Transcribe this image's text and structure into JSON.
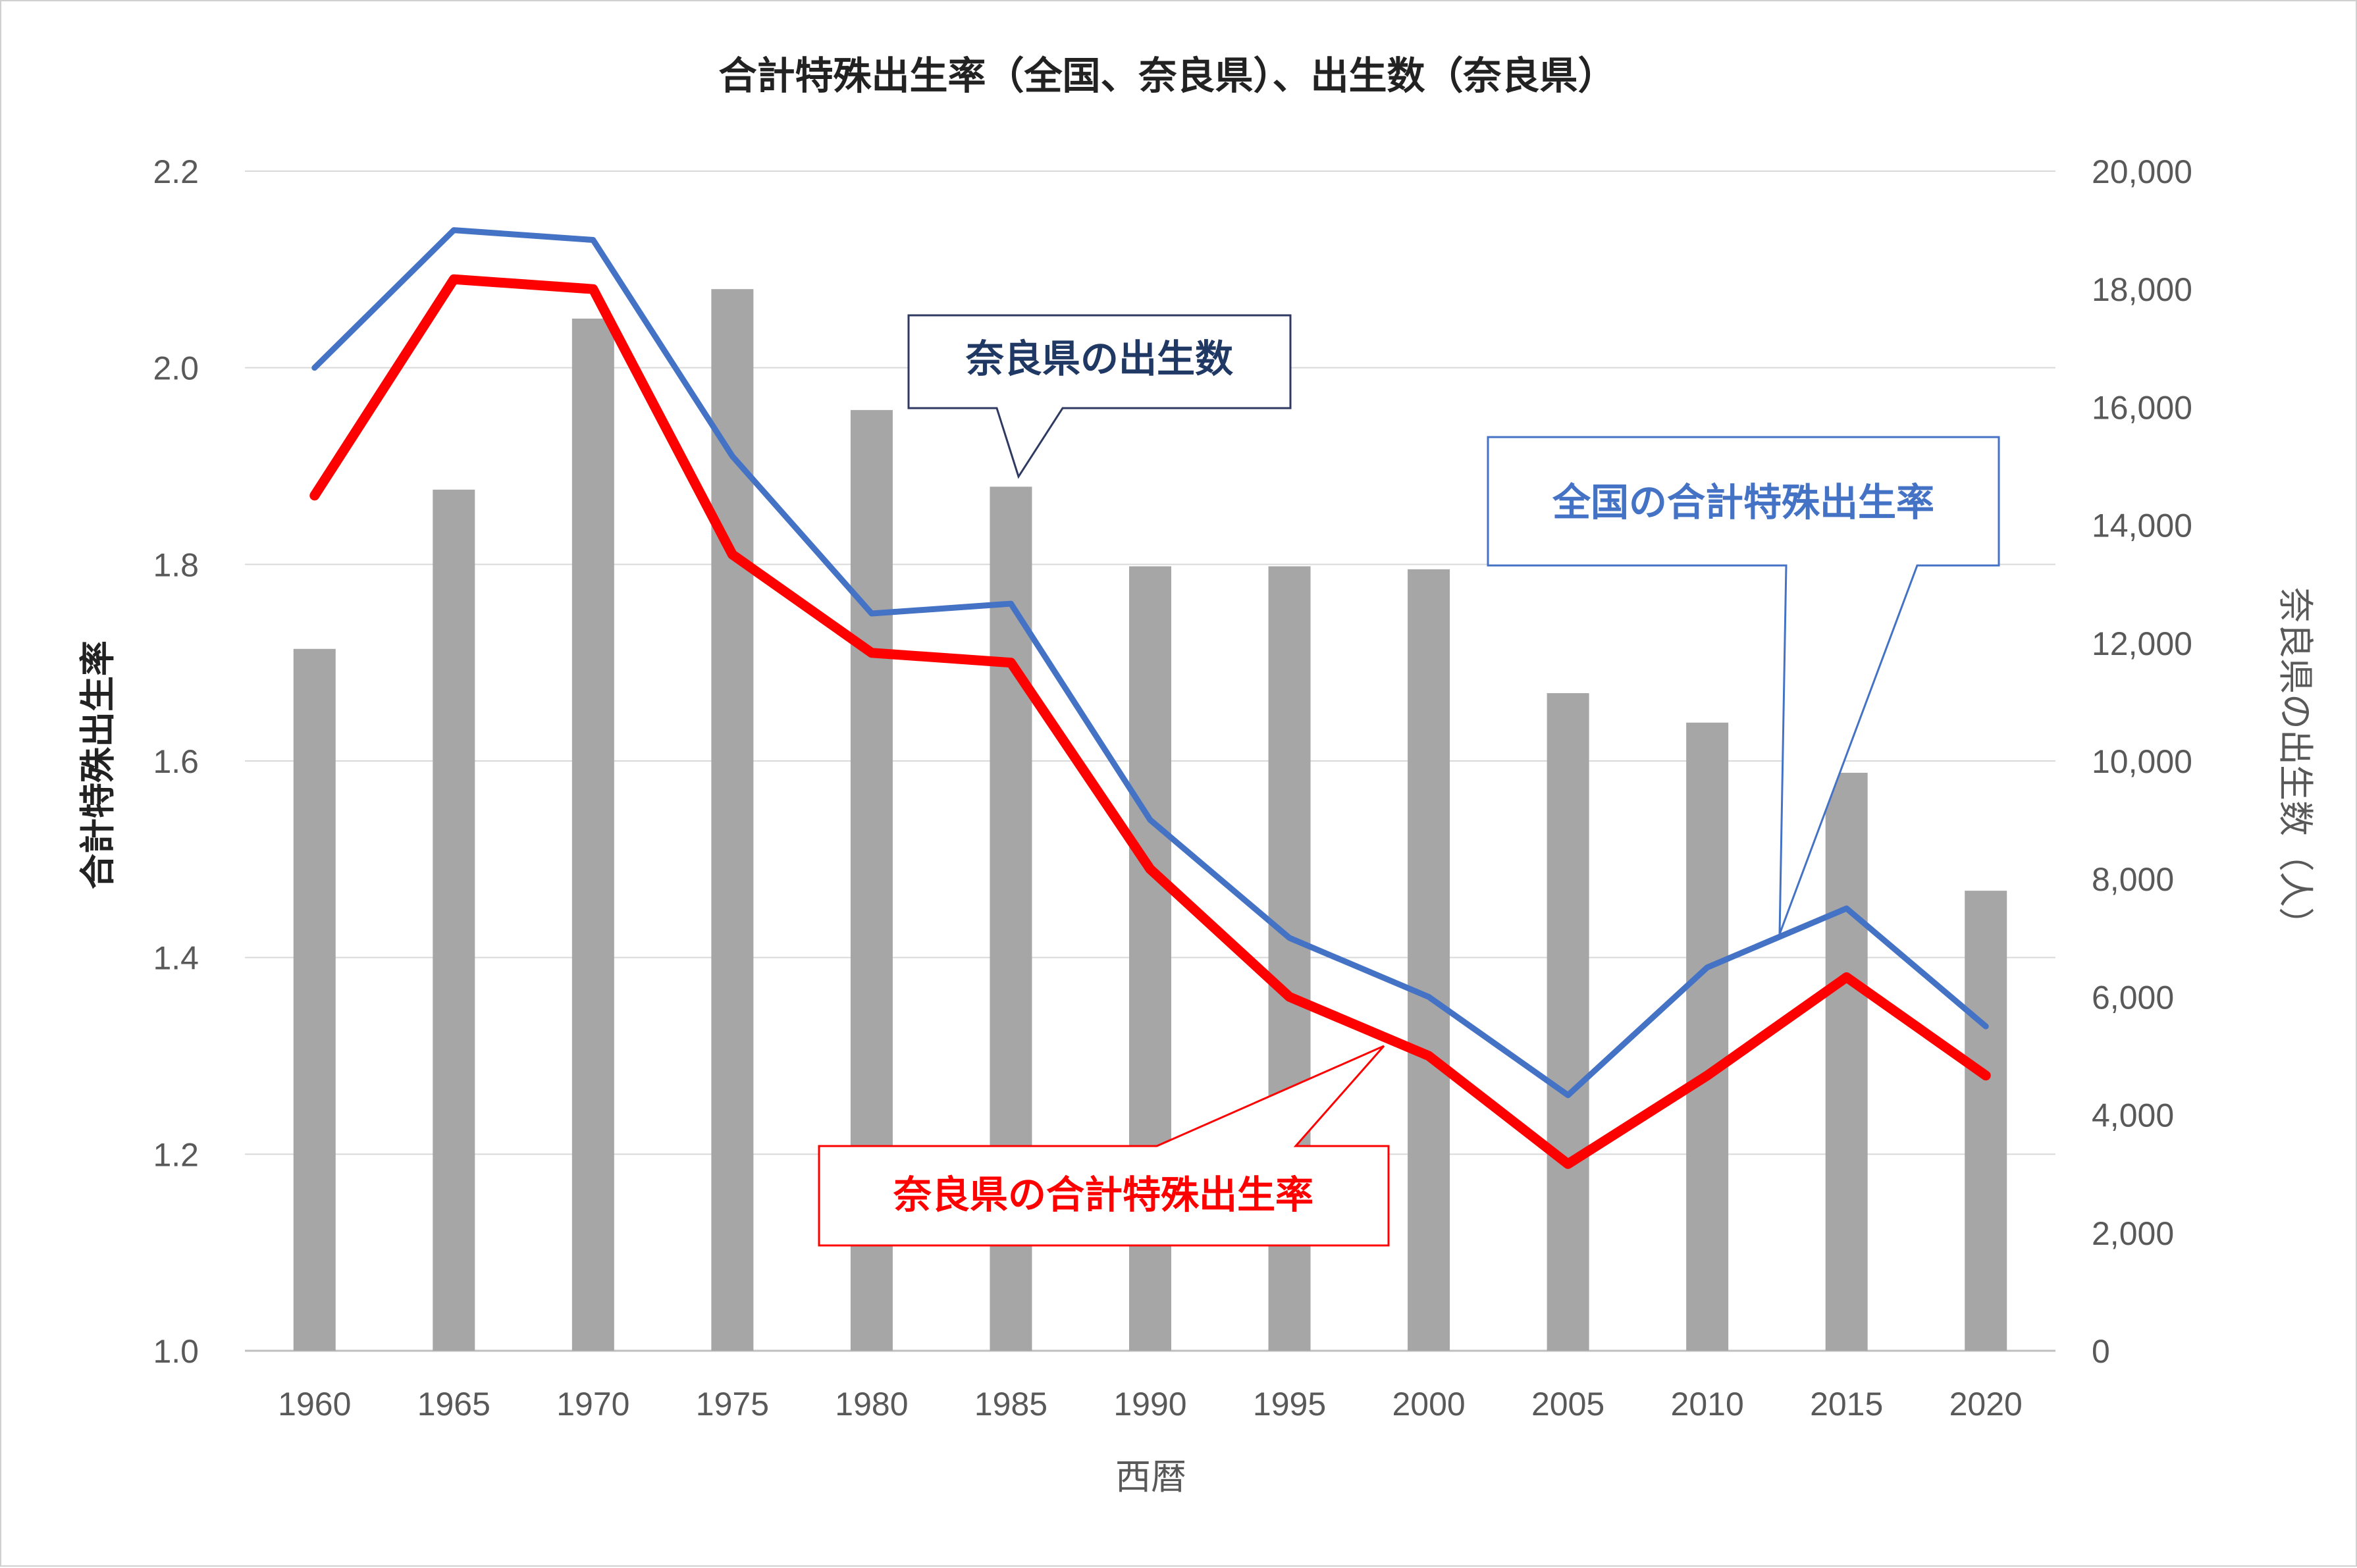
{
  "chart_data": {
    "type": "bar+line",
    "title": "合計特殊出生率（全国、奈良県）、出生数（奈良県）",
    "xlabel": "西暦",
    "ylabel_left": "合計特殊出生率",
    "ylabel_right": "奈良県の出生数（人）",
    "categories": [
      "1960",
      "1965",
      "1970",
      "1975",
      "1980",
      "1985",
      "1990",
      "1995",
      "2000",
      "2005",
      "2010",
      "2015",
      "2020"
    ],
    "ylim_left": [
      1.0,
      2.2
    ],
    "left_ticks": [
      "1.0",
      "1.2",
      "1.4",
      "1.6",
      "1.8",
      "2.0",
      "2.2"
    ],
    "ylim_right": [
      0,
      20000
    ],
    "right_ticks": [
      "0",
      "2,000",
      "4,000",
      "6,000",
      "8,000",
      "10,000",
      "12,000",
      "14,000",
      "16,000",
      "18,000",
      "20,000"
    ],
    "grid": true,
    "series": [
      {
        "name": "奈良県の出生数",
        "type": "bar",
        "axis": "right",
        "color": "#a6a6a6",
        "values": [
          11900,
          14600,
          17500,
          18000,
          15950,
          14650,
          13300,
          13300,
          13250,
          11150,
          10650,
          9800,
          7800
        ]
      },
      {
        "name": "全国の合計特殊出生率",
        "type": "line",
        "axis": "left",
        "color": "#4472c4",
        "values": [
          2.0,
          2.14,
          2.13,
          1.91,
          1.75,
          1.76,
          1.54,
          1.42,
          1.36,
          1.26,
          1.39,
          1.45,
          1.33
        ]
      },
      {
        "name": "奈良県の合計特殊出生率",
        "type": "line",
        "axis": "left",
        "color": "#ff0000",
        "values": [
          1.87,
          2.09,
          2.08,
          1.81,
          1.71,
          1.7,
          1.49,
          1.36,
          1.3,
          1.19,
          1.28,
          1.38,
          1.28
        ]
      }
    ],
    "callouts": [
      {
        "text": "奈良県の出生数",
        "color": "#203864"
      },
      {
        "text": "全国の合計特殊出生率",
        "color": "#4472c4"
      },
      {
        "text": "奈良県の合計特殊出生率",
        "color": "#ff0000"
      }
    ]
  }
}
